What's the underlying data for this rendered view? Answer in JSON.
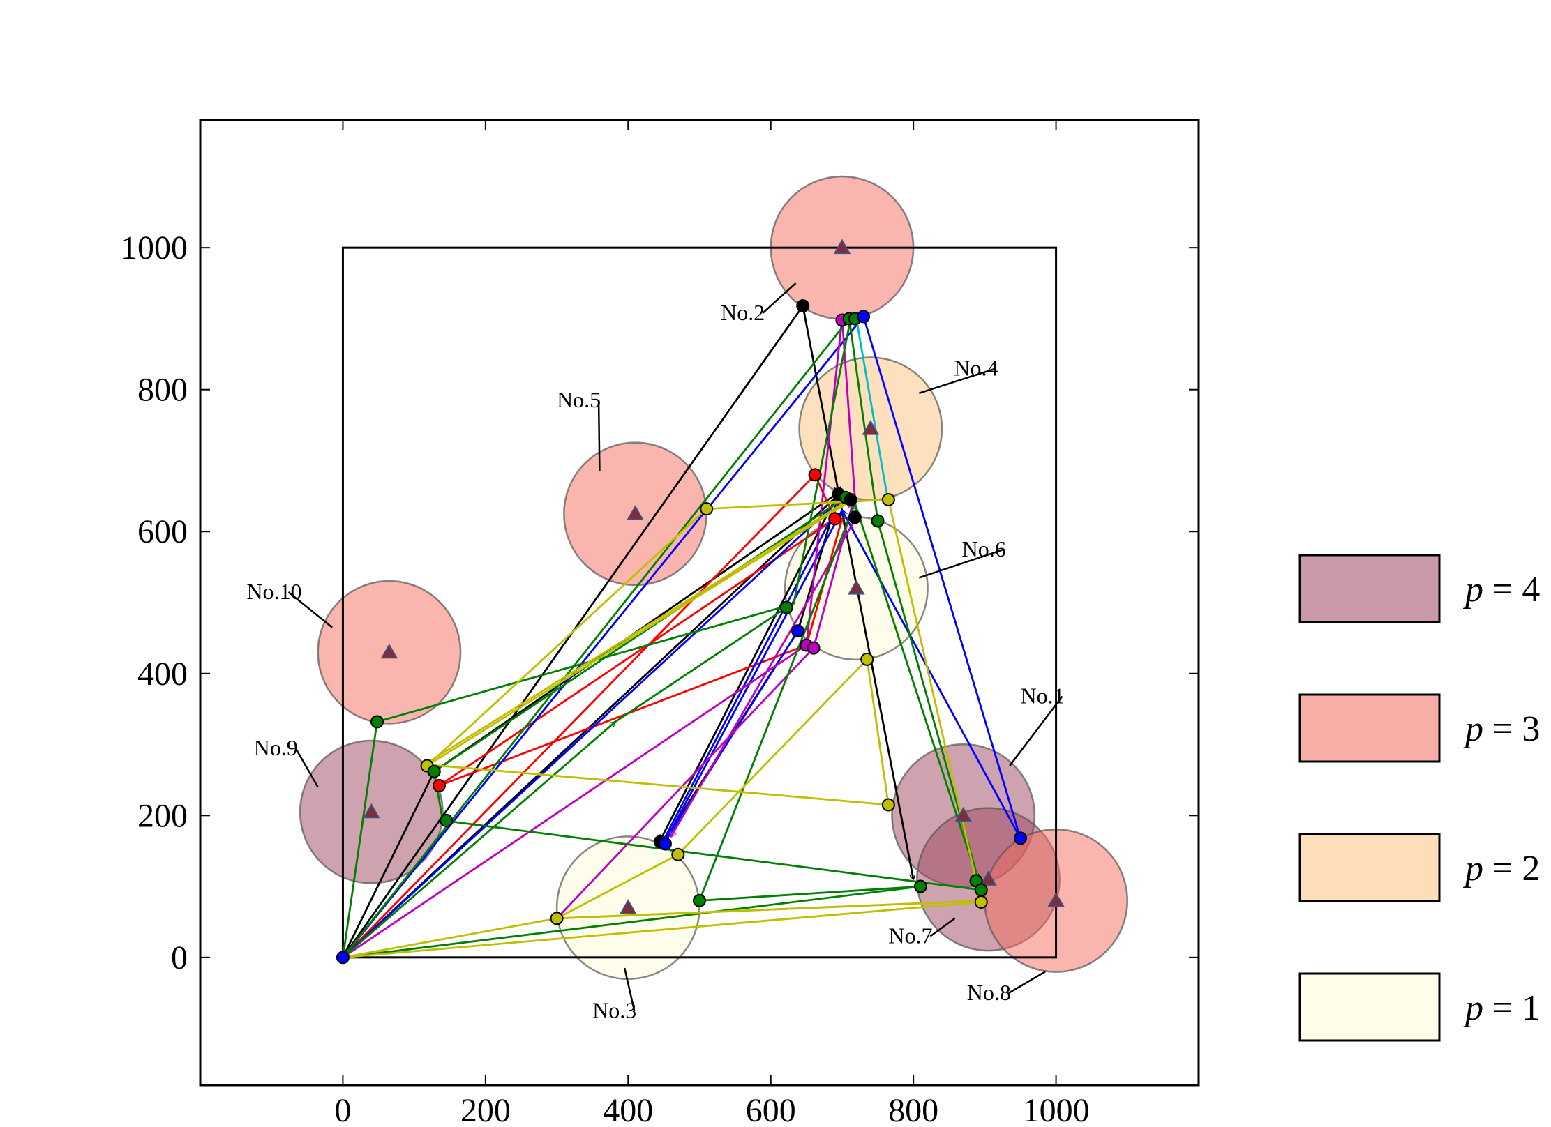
{
  "chart_data": {
    "type": "scatter",
    "title": "",
    "xlabel": "",
    "ylabel": "",
    "xlim": [
      -200,
      1200
    ],
    "ylim": [
      -180,
      1180
    ],
    "xticks": [
      0,
      200,
      400,
      600,
      800,
      1000
    ],
    "yticks": [
      0,
      200,
      400,
      600,
      800,
      1000
    ],
    "boundary": {
      "x0": 0,
      "y0": 0,
      "x1": 1000,
      "y1": 1000
    },
    "legend_position": "right",
    "priority_colors": {
      "4": "#9e4660",
      "3": "#f36b5e",
      "2": "#fcc37d",
      "1": "#fdfbd8"
    },
    "legend": [
      {
        "p": 4,
        "prefix": "p",
        "label": " = 4"
      },
      {
        "p": 3,
        "prefix": "p",
        "label": " = 3"
      },
      {
        "p": 2,
        "prefix": "p",
        "label": " = 2"
      },
      {
        "p": 1,
        "prefix": "p",
        "label": " = 1"
      }
    ],
    "zones": [
      {
        "label": "No.1",
        "x": 870,
        "y": 200,
        "r": 100,
        "p": 4,
        "label_pos": [
          950,
          358
        ],
        "leader_to": [
          935,
          270
        ]
      },
      {
        "label": "No.2",
        "x": 700,
        "y": 1000,
        "r": 100,
        "p": 3,
        "label_pos": [
          530,
          898
        ],
        "leader_to": [
          635,
          950
        ]
      },
      {
        "label": "No.3",
        "x": 400,
        "y": 70,
        "r": 100,
        "p": 1,
        "label_pos": [
          350,
          -85
        ],
        "leader_to": [
          395,
          -15
        ]
      },
      {
        "label": "No.4",
        "x": 740,
        "y": 745,
        "r": 100,
        "p": 2,
        "label_pos": [
          857,
          820
        ],
        "leader_to": [
          808,
          795
        ]
      },
      {
        "label": "No.5",
        "x": 410,
        "y": 625,
        "r": 100,
        "p": 3,
        "label_pos": [
          300,
          775
        ],
        "leader_to": [
          360,
          685
        ]
      },
      {
        "label": "No.6",
        "x": 720,
        "y": 520,
        "r": 100,
        "p": 1,
        "label_pos": [
          868,
          565
        ],
        "leader_to": [
          808,
          535
        ]
      },
      {
        "label": "No.7",
        "x": 905,
        "y": 110,
        "r": 100,
        "p": 4,
        "label_pos": [
          765,
          20
        ],
        "leader_to": [
          858,
          55
        ]
      },
      {
        "label": "No.8",
        "x": 1000,
        "y": 80,
        "r": 100,
        "p": 3,
        "label_pos": [
          875,
          -60
        ],
        "leader_to": [
          985,
          -20
        ]
      },
      {
        "label": "No.9",
        "x": 40,
        "y": 205,
        "r": 100,
        "p": 4,
        "label_pos": [
          -125,
          285
        ],
        "leader_to": [
          -35,
          240
        ]
      },
      {
        "label": "No.10",
        "x": 65,
        "y": 430,
        "r": 100,
        "p": 3,
        "label_pos": [
          -135,
          505
        ],
        "leader_to": [
          -15,
          465
        ]
      }
    ],
    "paths": [
      {
        "color": "#000000",
        "points": [
          [
            0,
            0
          ],
          [
            128,
            262
          ],
          [
            695,
            655
          ],
          [
            800,
            110
          ]
        ]
      },
      {
        "color": "#000000",
        "points": [
          [
            0,
            0
          ],
          [
            645,
            918
          ],
          [
            695,
            655
          ],
          [
            445,
            165
          ]
        ]
      },
      {
        "color": "#000000",
        "points": [
          [
            0,
            0
          ],
          [
            695,
            652
          ],
          [
            638,
            460
          ],
          [
            448,
            160
          ]
        ]
      },
      {
        "color": "#ff0000",
        "points": [
          [
            0,
            0
          ],
          [
            662,
            680
          ],
          [
            690,
            618
          ],
          [
            135,
            242
          ],
          [
            650,
            440
          ],
          [
            700,
            618
          ]
        ]
      },
      {
        "color": "#0000ff",
        "points": [
          [
            0,
            0
          ],
          [
            730,
            903
          ],
          [
            950,
            168
          ],
          [
            700,
            630
          ],
          [
            450,
            160
          ],
          [
            638,
            460
          ]
        ]
      },
      {
        "color": "#0000ff",
        "points": [
          [
            0,
            0
          ],
          [
            700,
            648
          ],
          [
            448,
            162
          ]
        ]
      },
      {
        "color": "#bf00bf",
        "points": [
          [
            0,
            0
          ],
          [
            650,
            440
          ],
          [
            700,
            900
          ],
          [
            720,
            620
          ],
          [
            460,
            170
          ]
        ]
      },
      {
        "color": "#bf00bf",
        "points": [
          [
            300,
            55
          ],
          [
            660,
            436
          ],
          [
            715,
            640
          ]
        ]
      },
      {
        "color": "#008000",
        "points": [
          [
            0,
            0
          ],
          [
            382,
            332
          ],
          [
            622,
            493
          ]
        ]
      },
      {
        "color": "#008000",
        "points": [
          [
            0,
            0
          ],
          [
            810,
            100
          ],
          [
            500,
            80
          ],
          [
            718,
            640
          ],
          [
            890,
            110
          ]
        ]
      },
      {
        "color": "#008000",
        "points": [
          [
            0,
            0
          ],
          [
            710,
            900
          ],
          [
            750,
            615
          ],
          [
            895,
            95
          ],
          [
            140,
            193
          ],
          [
            128,
            262
          ],
          [
            700,
            645
          ]
        ]
      },
      {
        "color": "#008000",
        "points": [
          [
            0,
            0
          ],
          [
            48,
            332
          ],
          [
            632,
            498
          ],
          [
            712,
            900
          ]
        ]
      },
      {
        "color": "#bfbf00",
        "points": [
          [
            0,
            0
          ],
          [
            300,
            55
          ],
          [
            900,
            80
          ],
          [
            300,
            55
          ],
          [
            470,
            145
          ],
          [
            735,
            420
          ],
          [
            765,
            215
          ],
          [
            115,
            272
          ],
          [
            710,
            645
          ]
        ]
      },
      {
        "color": "#bfbf00",
        "points": [
          [
            0,
            0
          ],
          [
            895,
            78
          ],
          [
            765,
            645
          ],
          [
            510,
            632
          ],
          [
            118,
            270
          ],
          [
            715,
            645
          ]
        ]
      },
      {
        "color": "#00bfbf",
        "points": [
          [
            720,
            900
          ],
          [
            765,
            640
          ]
        ]
      }
    ],
    "points": [
      {
        "x": 0,
        "y": 0,
        "color": "#0000ff"
      },
      {
        "x": 645,
        "y": 918,
        "color": "#000000"
      },
      {
        "x": 700,
        "y": 898,
        "color": "#bf00bf"
      },
      {
        "x": 710,
        "y": 900,
        "color": "#008000"
      },
      {
        "x": 718,
        "y": 900,
        "color": "#008000"
      },
      {
        "x": 730,
        "y": 903,
        "color": "#0000ff"
      },
      {
        "x": 662,
        "y": 680,
        "color": "#ff0000"
      },
      {
        "x": 695,
        "y": 653,
        "color": "#000000"
      },
      {
        "x": 705,
        "y": 648,
        "color": "#008000"
      },
      {
        "x": 712,
        "y": 645,
        "color": "#000000"
      },
      {
        "x": 690,
        "y": 618,
        "color": "#ff0000"
      },
      {
        "x": 718,
        "y": 620,
        "color": "#000000"
      },
      {
        "x": 750,
        "y": 615,
        "color": "#008000"
      },
      {
        "x": 765,
        "y": 645,
        "color": "#bfbf00"
      },
      {
        "x": 510,
        "y": 632,
        "color": "#bfbf00"
      },
      {
        "x": 622,
        "y": 493,
        "color": "#008000"
      },
      {
        "x": 638,
        "y": 460,
        "color": "#0000ff"
      },
      {
        "x": 650,
        "y": 440,
        "color": "#bf00bf"
      },
      {
        "x": 660,
        "y": 436,
        "color": "#bf00bf"
      },
      {
        "x": 735,
        "y": 420,
        "color": "#bfbf00"
      },
      {
        "x": 48,
        "y": 332,
        "color": "#008000"
      },
      {
        "x": 118,
        "y": 270,
        "color": "#bfbf00"
      },
      {
        "x": 128,
        "y": 262,
        "color": "#008000"
      },
      {
        "x": 135,
        "y": 242,
        "color": "#ff0000"
      },
      {
        "x": 145,
        "y": 193,
        "color": "#008000"
      },
      {
        "x": 445,
        "y": 163,
        "color": "#000000"
      },
      {
        "x": 452,
        "y": 160,
        "color": "#0000ff"
      },
      {
        "x": 470,
        "y": 145,
        "color": "#bfbf00"
      },
      {
        "x": 300,
        "y": 55,
        "color": "#bfbf00"
      },
      {
        "x": 500,
        "y": 80,
        "color": "#008000"
      },
      {
        "x": 765,
        "y": 215,
        "color": "#bfbf00"
      },
      {
        "x": 810,
        "y": 100,
        "color": "#008000"
      },
      {
        "x": 888,
        "y": 108,
        "color": "#008000"
      },
      {
        "x": 895,
        "y": 95,
        "color": "#008000"
      },
      {
        "x": 895,
        "y": 78,
        "color": "#bfbf00"
      },
      {
        "x": 950,
        "y": 168,
        "color": "#0000ff"
      }
    ]
  }
}
